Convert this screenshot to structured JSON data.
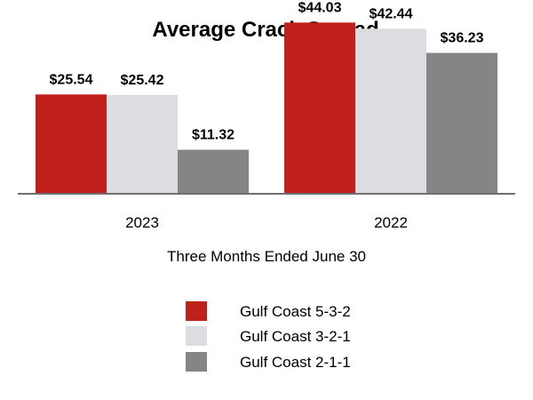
{
  "chart_data": {
    "type": "bar",
    "title": "Average Crack Spread",
    "xlabel": "Three Months Ended June 30",
    "ylabel": "",
    "categories": [
      "2023",
      "2022"
    ],
    "series": [
      {
        "name": "Gulf Coast 5-3-2",
        "values": [
          25.54,
          44.03
        ],
        "labels": [
          "$25.54",
          "$44.03"
        ],
        "color": "#c0201c"
      },
      {
        "name": "Gulf Coast 3-2-1",
        "values": [
          25.42,
          42.44
        ],
        "labels": [
          "$25.42",
          "$42.44"
        ],
        "color": "#dddde1"
      },
      {
        "name": "Gulf Coast 2-1-1",
        "values": [
          11.32,
          36.23
        ],
        "labels": [
          "$11.32",
          "$36.23"
        ],
        "color": "#858585"
      }
    ],
    "ylim": [
      0,
      48
    ],
    "grid": false,
    "legend_position": "bottom",
    "axis_color": "#707070"
  }
}
